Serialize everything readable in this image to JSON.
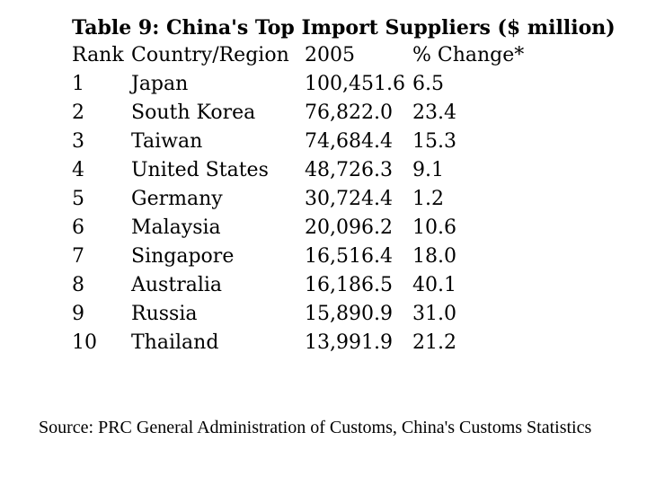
{
  "table": {
    "title": "Table 9: China's Top  Import Suppliers ($ million)",
    "headers": {
      "rank": "Rank",
      "country": "Country/Region",
      "year": "2005",
      "change": "% Change*"
    },
    "rows": [
      {
        "rank": "1",
        "country": "Japan",
        "value": "100,451.6",
        "change": "6.5"
      },
      {
        "rank": "2",
        "country": "South Korea",
        "value": "76,822.0",
        "change": "23.4"
      },
      {
        "rank": "3",
        "country": "Taiwan",
        "value": "74,684.4",
        "change": "15.3"
      },
      {
        "rank": "4",
        "country": "United States",
        "value": "48,726.3",
        "change": "9.1"
      },
      {
        "rank": "5",
        "country": "Germany",
        "value": "30,724.4",
        "change": "1.2"
      },
      {
        "rank": "6",
        "country": "Malaysia",
        "value": "20,096.2",
        "change": "10.6"
      },
      {
        "rank": "7",
        "country": "Singapore",
        "value": "16,516.4",
        "change": "18.0"
      },
      {
        "rank": "8",
        "country": "Australia",
        "value": "16,186.5",
        "change": "40.1"
      },
      {
        "rank": "9",
        "country": "Russia",
        "value": "15,890.9",
        "change": "31.0"
      },
      {
        "rank": "10",
        "country": "Thailand",
        "value": "13,991.9",
        "change": "21.2"
      }
    ]
  },
  "source": {
    "text": "Source: PRC General Administration of Customs, China's Customs Statistics"
  }
}
